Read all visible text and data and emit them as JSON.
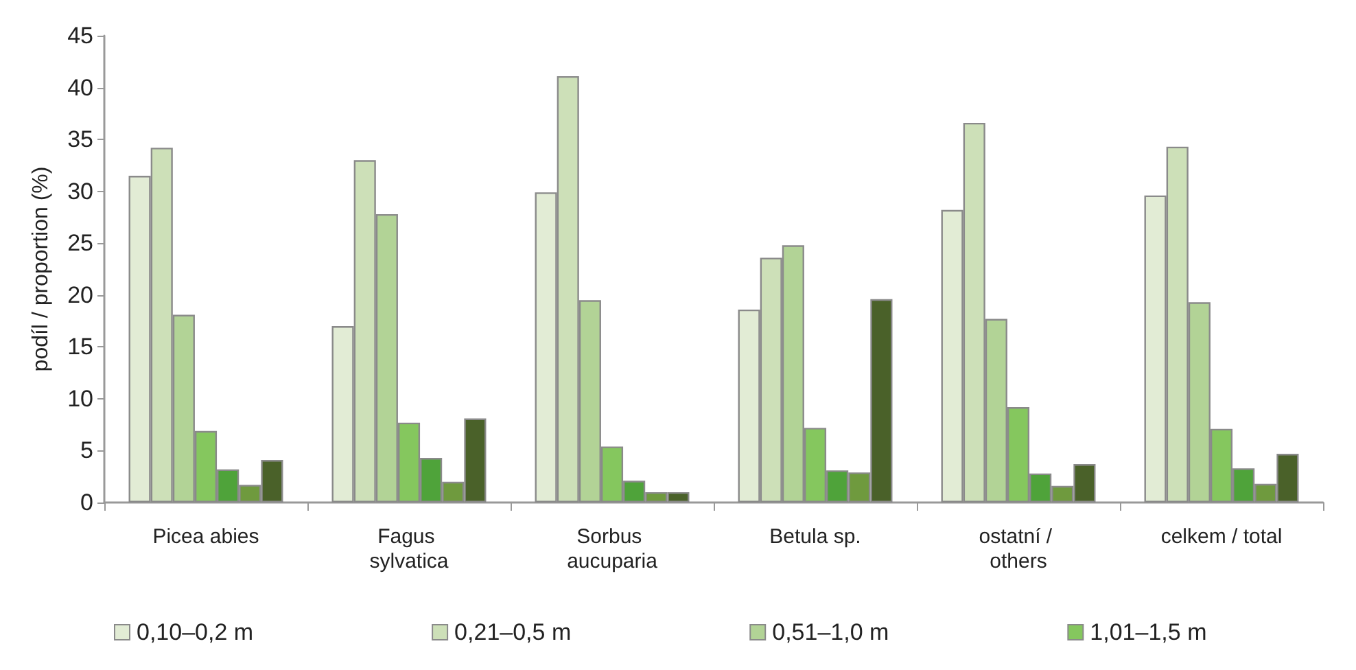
{
  "chart_data": {
    "type": "bar",
    "ylabel": "podíl / proportion (%)",
    "categories": [
      "Picea abies",
      "Fagus sylvatica",
      "Sorbus aucuparia",
      "Betula sp.",
      "ostatní / others",
      "celkem / total"
    ],
    "series": [
      {
        "name": "0,10–0,2 m",
        "color": "#e2ecd5",
        "values": [
          31.5,
          17.0,
          29.9,
          18.6,
          28.2,
          29.6
        ]
      },
      {
        "name": "0,21–0,5 m",
        "color": "#cde0b8",
        "values": [
          34.2,
          33.0,
          41.1,
          23.6,
          36.6,
          34.3
        ]
      },
      {
        "name": "0,51–1,0 m",
        "color": "#b2d396",
        "values": [
          18.1,
          27.8,
          19.5,
          24.8,
          17.7,
          19.3
        ]
      },
      {
        "name": "1,01–1,5 m",
        "color": "#85c75e",
        "values": [
          6.9,
          7.7,
          5.4,
          7.2,
          9.2,
          7.1
        ]
      },
      {
        "color": "#4fa33a",
        "values": [
          3.2,
          4.3,
          2.1,
          3.1,
          2.8,
          3.3
        ]
      },
      {
        "color": "#6f9a3e",
        "values": [
          1.7,
          2.0,
          1.0,
          2.9,
          1.6,
          1.8
        ]
      },
      {
        "color": "#4a6129",
        "values": [
          4.1,
          8.1,
          1.0,
          19.6,
          3.7,
          4.7
        ]
      }
    ],
    "ylim": [
      0,
      45
    ],
    "yticks": [
      0,
      5,
      10,
      15,
      20,
      25,
      30,
      35,
      40,
      45
    ],
    "grid": false,
    "legend": "bottom"
  }
}
